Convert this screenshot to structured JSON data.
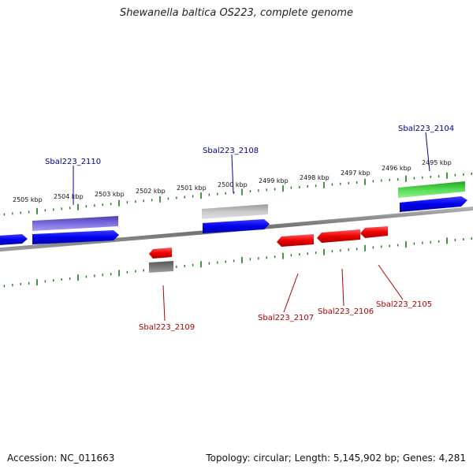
{
  "title": "Shewanella baltica OS223, complete genome",
  "accession": "Accession: NC_011663",
  "summary": "Topology: circular; Length: 5,145,902 bp; Genes: 4,281",
  "colors": {
    "backbone": "#808080",
    "ticks": "#1a7a1a",
    "forward_label": "#00008b",
    "reverse_label": "#b00000",
    "blue_feature": "#0000ee",
    "red_feature": "#ee0000",
    "green_feature": "#33bb33",
    "purple_feature": "#6a5acd",
    "gray_feature": "#b0b0b0",
    "darkgray_feature": "#707070"
  },
  "scale_labels": [
    "2505 kbp",
    "2504 kbp",
    "2503 kbp",
    "2502 kbp",
    "2501 kbp",
    "2500 kbp",
    "2499 kbp",
    "2498 kbp",
    "2497 kbp",
    "2496 kbp",
    "2495 kbp"
  ],
  "gene_labels": [
    {
      "name": "Sbal223_2110",
      "strand": "forward"
    },
    {
      "name": "Sbal223_2108",
      "strand": "forward"
    },
    {
      "name": "Sbal223_2104",
      "strand": "forward"
    },
    {
      "name": "Sbal223_2109",
      "strand": "reverse"
    },
    {
      "name": "Sbal223_2107",
      "strand": "reverse"
    },
    {
      "name": "Sbal223_2106",
      "strand": "reverse"
    },
    {
      "name": "Sbal223_2105",
      "strand": "reverse"
    }
  ]
}
